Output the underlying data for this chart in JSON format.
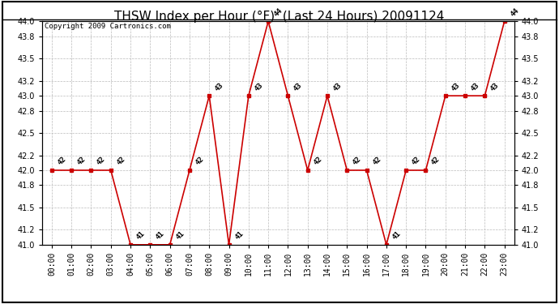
{
  "title": "THSW Index per Hour (°F)  (Last 24 Hours) 20091124",
  "copyright": "Copyright 2009 Cartronics.com",
  "hours": [
    "00:00",
    "01:00",
    "02:00",
    "03:00",
    "04:00",
    "05:00",
    "06:00",
    "07:00",
    "08:00",
    "09:00",
    "10:00",
    "11:00",
    "12:00",
    "13:00",
    "14:00",
    "15:00",
    "16:00",
    "17:00",
    "18:00",
    "19:00",
    "20:00",
    "21:00",
    "22:00",
    "23:00"
  ],
  "values": [
    42,
    42,
    42,
    42,
    41,
    41,
    41,
    42,
    43,
    41,
    43,
    44,
    43,
    42,
    43,
    42,
    42,
    41,
    42,
    42,
    43,
    43,
    43,
    44
  ],
  "ylim_min": 41.0,
  "ylim_max": 44.0,
  "yticks": [
    41.0,
    41.2,
    41.5,
    41.8,
    42.0,
    42.2,
    42.5,
    42.8,
    43.0,
    43.2,
    43.5,
    43.8,
    44.0
  ],
  "line_color": "#cc0000",
  "marker_color": "#cc0000",
  "bg_color": "#ffffff",
  "grid_color": "#bbbbbb",
  "title_fontsize": 11,
  "label_fontsize": 6.5,
  "tick_fontsize": 7,
  "copyright_fontsize": 6.5
}
